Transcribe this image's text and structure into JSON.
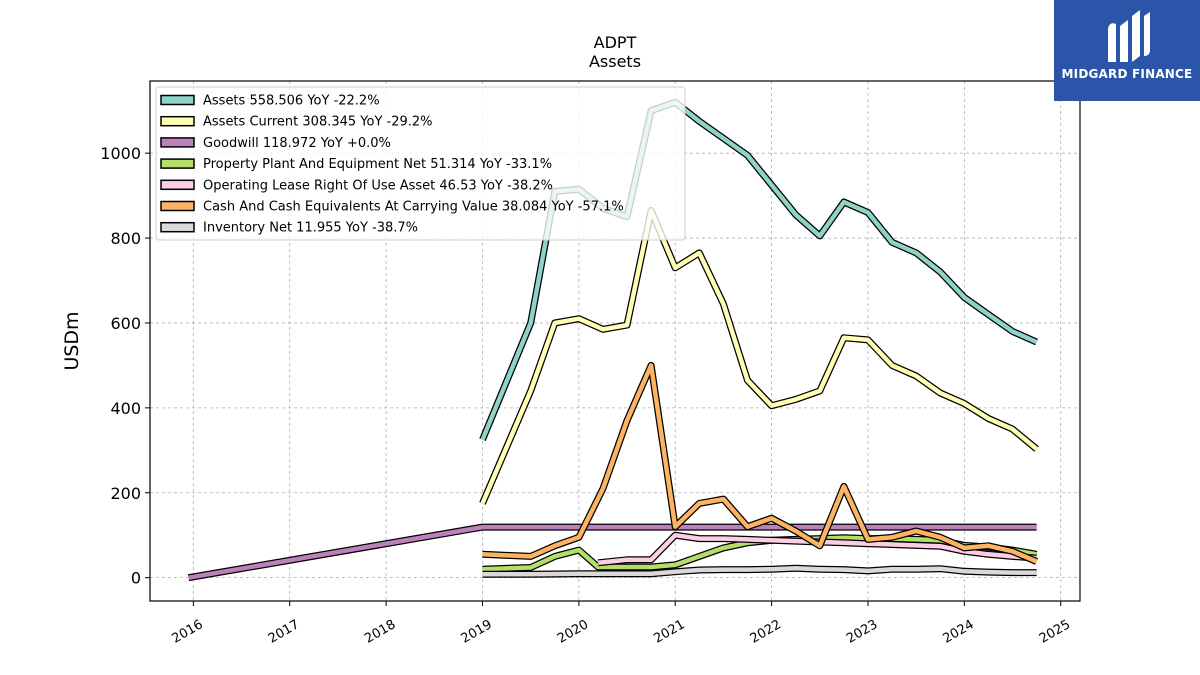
{
  "chart_data": {
    "type": "line",
    "title": "ADPT",
    "subtitle": "Assets",
    "ylabel": "USDm",
    "xlabel": "",
    "xlim": [
      2015.55,
      2025.2
    ],
    "ylim": [
      -55,
      1170
    ],
    "yticks": [
      0,
      200,
      400,
      600,
      800,
      1000
    ],
    "xticks": [
      2016,
      2017,
      2018,
      2019,
      2020,
      2021,
      2022,
      2023,
      2024,
      2025
    ],
    "xtick_labels": [
      "2016",
      "2017",
      "2018",
      "2019",
      "2020",
      "2021",
      "2022",
      "2023",
      "2024",
      "2025"
    ],
    "grid": true,
    "legend_position": "top-left",
    "series": [
      {
        "name": "Assets",
        "legend": "Assets  558.506 YoY -22.2%",
        "color": "#8dd3c7",
        "x": [
          2019.0,
          2019.5,
          2019.75,
          2020.0,
          2020.25,
          2020.5,
          2020.75,
          2021.0,
          2021.25,
          2021.5,
          2021.75,
          2022.0,
          2022.25,
          2022.5,
          2022.75,
          2023.0,
          2023.25,
          2023.5,
          2023.75,
          2024.0,
          2024.25,
          2024.5,
          2024.75
        ],
        "y": [
          325,
          600,
          910,
          915,
          870,
          850,
          1100,
          1120,
          1075,
          1035,
          995,
          925,
          855,
          805,
          885,
          860,
          790,
          765,
          720,
          660,
          620,
          580,
          555
        ]
      },
      {
        "name": "Assets Current",
        "legend": "Assets Current  308.345 YoY -29.2%",
        "color": "#ffffb3",
        "x": [
          2019.0,
          2019.5,
          2019.75,
          2020.0,
          2020.25,
          2020.5,
          2020.75,
          2021.0,
          2021.25,
          2021.5,
          2021.75,
          2022.0,
          2022.25,
          2022.5,
          2022.75,
          2023.0,
          2023.25,
          2023.5,
          2023.75,
          2024.0,
          2024.25,
          2024.5,
          2024.75
        ],
        "y": [
          175,
          440,
          600,
          610,
          585,
          595,
          865,
          730,
          765,
          645,
          465,
          405,
          420,
          440,
          565,
          560,
          500,
          475,
          435,
          410,
          375,
          350,
          303
        ]
      },
      {
        "name": "Goodwill",
        "legend": "Goodwill  118.972 YoY +0.0%",
        "color": "#bc80bd",
        "x": [
          2015.95,
          2019.0,
          2019.5,
          2020.0,
          2020.5,
          2021.0,
          2021.5,
          2022.0,
          2022.5,
          2023.0,
          2023.5,
          2024.0,
          2024.5,
          2024.75
        ],
        "y": [
          0,
          119,
          119,
          119,
          119,
          119,
          119,
          119,
          119,
          119,
          119,
          119,
          119,
          119
        ]
      },
      {
        "name": "Property Plant And Equipment Net",
        "legend": "Property Plant And Equipment Net  51.314 YoY -33.1%",
        "color": "#b3de69",
        "x": [
          2019.0,
          2019.5,
          2019.75,
          2020.0,
          2020.2,
          2020.5,
          2020.75,
          2021.0,
          2021.25,
          2021.5,
          2021.75,
          2022.0,
          2022.25,
          2022.5,
          2022.75,
          2023.0,
          2023.25,
          2023.5,
          2023.75,
          2024.0,
          2024.25,
          2024.5,
          2024.75
        ],
        "y": [
          20,
          24,
          50,
          65,
          25,
          25,
          25,
          30,
          50,
          70,
          82,
          88,
          90,
          92,
          94,
          92,
          92,
          90,
          88,
          76,
          72,
          65,
          55
        ]
      },
      {
        "name": "Operating Lease Right Of Use Asset",
        "legend": "Operating Lease Right Of Use Asset  46.53 YoY -38.2%",
        "color": "#fccde5",
        "x": [
          2020.2,
          2020.5,
          2020.75,
          2021.0,
          2021.25,
          2021.5,
          2021.75,
          2022.0,
          2022.25,
          2022.5,
          2022.75,
          2023.0,
          2023.25,
          2023.5,
          2023.75,
          2024.0,
          2024.25,
          2024.5,
          2024.75
        ],
        "y": [
          35,
          42,
          42,
          100,
          92,
          92,
          90,
          88,
          86,
          84,
          82,
          80,
          78,
          76,
          74,
          62,
          55,
          50,
          46
        ]
      },
      {
        "name": "Cash And Cash Equivalents At Carrying Value",
        "legend": "Cash And Cash Equivalents At Carrying Value  38.084 YoY -57.1%",
        "color": "#fdb462",
        "x": [
          2019.0,
          2019.5,
          2019.75,
          2020.0,
          2020.25,
          2020.5,
          2020.75,
          2021.0,
          2021.25,
          2021.5,
          2021.75,
          2022.0,
          2022.25,
          2022.5,
          2022.75,
          2023.0,
          2023.25,
          2023.5,
          2023.75,
          2024.0,
          2024.25,
          2024.5,
          2024.75
        ],
        "y": [
          55,
          50,
          75,
          95,
          210,
          370,
          500,
          120,
          175,
          185,
          120,
          140,
          110,
          75,
          215,
          90,
          95,
          110,
          95,
          70,
          75,
          62,
          38
        ]
      },
      {
        "name": "Inventory Net",
        "legend": "Inventory Net  11.955 YoY -38.7%",
        "color": "#d9d9d9",
        "x": [
          2019.0,
          2019.5,
          2020.0,
          2020.5,
          2020.75,
          2021.0,
          2021.25,
          2021.5,
          2021.75,
          2022.0,
          2022.25,
          2022.5,
          2022.75,
          2023.0,
          2023.25,
          2023.5,
          2023.75,
          2024.0,
          2024.25,
          2024.5,
          2024.75
        ],
        "y": [
          8,
          8,
          9,
          9,
          9,
          14,
          18,
          19,
          19,
          20,
          22,
          20,
          19,
          16,
          20,
          20,
          21,
          15,
          13,
          12,
          12
        ]
      }
    ]
  },
  "logo": {
    "text": "MIDGARD FINANCE"
  }
}
